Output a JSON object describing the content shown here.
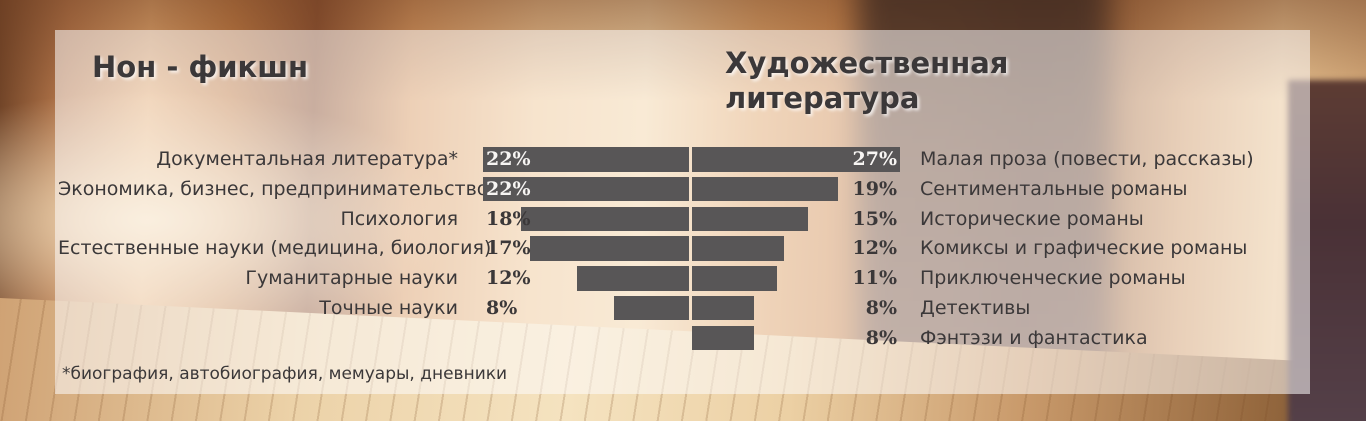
{
  "page": {
    "footnote": "*биография, автобиография, мемуары, дневники"
  },
  "colors": {
    "bar": "#585657",
    "panel_overlay": "rgba(253,252,251,0.55)",
    "text_dark": "#3b3839",
    "text_on_bar": "#f7f5f3"
  },
  "chart_data": {
    "type": "bar",
    "variant": "butterfly",
    "unit": "%",
    "left_title": "Нон - фикшн",
    "right_title": "Художественная литература",
    "legend_position": "none",
    "grid": false,
    "left": {
      "name": "Нон - фикшн",
      "categories": [
        "Документальная литература*",
        "Экономика, бизнес, предпринимательство",
        "Психология",
        "Естественные науки (медицина, биология)",
        "Гуманитарные науки",
        "Точные науки"
      ],
      "values": [
        22,
        22,
        18,
        17,
        12,
        8
      ]
    },
    "right": {
      "name": "Художественная литература",
      "categories": [
        "Малая проза (повести, рассказы)",
        "Сентиментальные романы",
        "Исторические романы",
        "Комиксы и графические романы",
        "Приключенческие романы",
        "Детективы",
        "Фэнтэзи и фантастика"
      ],
      "values": [
        27,
        19,
        15,
        12,
        11,
        8,
        8
      ]
    }
  }
}
